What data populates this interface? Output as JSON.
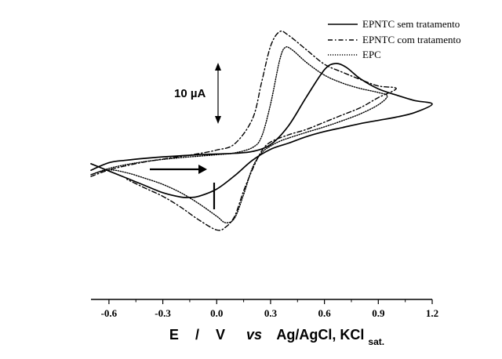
{
  "chart_data": {
    "type": "line",
    "title": "",
    "xlabel": {
      "parts": [
        "E",
        "/",
        "V",
        "vs",
        "Ag/AgCl, KCl",
        "sat."
      ]
    },
    "ylabel": "",
    "xlim": [
      -0.7,
      1.2
    ],
    "xticks": [
      -0.6,
      -0.3,
      0.0,
      0.3,
      0.6,
      0.9,
      1.2
    ],
    "xtick_labels": [
      "-0.6",
      "-0.3",
      "0.0",
      "0.3",
      "0.6",
      "0.9",
      "1.2"
    ],
    "y_unit": "µA",
    "ylim": [
      -40,
      38
    ],
    "grid": false,
    "legend_position": "top-right",
    "scale_bar": {
      "label": "10 µA",
      "value": 10
    },
    "scan_direction": "positive",
    "series": [
      {
        "name": "EPNTC sem tratamento",
        "style": "solid",
        "x": [
          -0.7,
          -0.6,
          -0.5,
          -0.4,
          -0.3,
          -0.2,
          -0.1,
          0.0,
          0.1,
          0.2,
          0.3,
          0.4,
          0.5,
          0.6,
          0.66,
          0.72,
          0.8,
          0.9,
          1.0,
          1.1,
          1.2,
          1.1,
          1.0,
          0.9,
          0.8,
          0.7,
          0.6,
          0.5,
          0.4,
          0.3,
          0.2,
          0.1,
          0.0,
          -0.1,
          -0.15,
          -0.2,
          -0.3,
          -0.4,
          -0.5,
          -0.6,
          -0.7
        ],
        "y": [
          -4.3,
          -2.2,
          -1.5,
          -1.0,
          -0.6,
          -0.3,
          0.0,
          0.2,
          0.4,
          0.9,
          2.8,
          8.0,
          16.0,
          23.5,
          25.2,
          24.2,
          21.0,
          18.2,
          16.5,
          15.0,
          14.0,
          11.6,
          10.4,
          9.5,
          8.6,
          7.5,
          6.4,
          5.0,
          3.2,
          1.5,
          -1.5,
          -5.8,
          -9.5,
          -11.5,
          -11.8,
          -11.7,
          -10.5,
          -8.5,
          -6.5,
          -4.5,
          -2.5
        ]
      },
      {
        "name": "EPNTC com tratamento",
        "style": "dashdot",
        "x": [
          -0.7,
          -0.6,
          -0.5,
          -0.4,
          -0.3,
          -0.2,
          -0.1,
          0.0,
          0.1,
          0.2,
          0.25,
          0.3,
          0.35,
          0.4,
          0.5,
          0.6,
          0.7,
          0.8,
          0.9,
          1.0,
          0.9,
          0.8,
          0.7,
          0.6,
          0.5,
          0.4,
          0.3,
          0.25,
          0.2,
          0.15,
          0.1,
          0.05,
          0.0,
          -0.1,
          -0.2,
          -0.3,
          -0.4,
          -0.5
        ],
        "y": [
          -6.0,
          -4.2,
          -3.0,
          -2.0,
          -1.2,
          -0.5,
          0.3,
          1.3,
          3.0,
          10.0,
          20.0,
          30.0,
          34.0,
          33.0,
          29.0,
          25.0,
          22.8,
          20.8,
          19.0,
          18.3,
          15.8,
          13.0,
          11.0,
          9.0,
          7.0,
          5.5,
          3.5,
          1.0,
          -4.0,
          -10.0,
          -17.0,
          -20.0,
          -20.8,
          -18.0,
          -14.5,
          -11.5,
          -9.2,
          -6.8
        ]
      },
      {
        "name": "EPC",
        "style": "dotted",
        "x": [
          -0.7,
          -0.6,
          -0.5,
          -0.4,
          -0.3,
          -0.2,
          -0.1,
          0.0,
          0.1,
          0.2,
          0.25,
          0.3,
          0.35,
          0.38,
          0.42,
          0.5,
          0.6,
          0.7,
          0.8,
          0.9,
          0.95,
          0.9,
          0.8,
          0.7,
          0.6,
          0.5,
          0.4,
          0.35,
          0.3,
          0.25,
          0.2,
          0.15,
          0.1,
          0.05,
          0.0,
          -0.1,
          -0.2,
          -0.3,
          -0.4,
          -0.5,
          -0.6,
          -0.7
        ],
        "y": [
          -5.5,
          -3.8,
          -2.7,
          -1.9,
          -1.3,
          -0.8,
          -0.4,
          0.0,
          0.5,
          2.0,
          5.0,
          14.0,
          26.0,
          29.6,
          29.0,
          25.5,
          22.0,
          19.8,
          18.3,
          17.2,
          16.2,
          13.8,
          11.3,
          9.4,
          7.7,
          6.2,
          4.6,
          3.7,
          2.4,
          0.5,
          -3.5,
          -11.0,
          -17.5,
          -18.8,
          -17.0,
          -13.5,
          -10.5,
          -8.2,
          -6.5,
          -5.0,
          -4.2,
          -5.5
        ]
      }
    ]
  }
}
